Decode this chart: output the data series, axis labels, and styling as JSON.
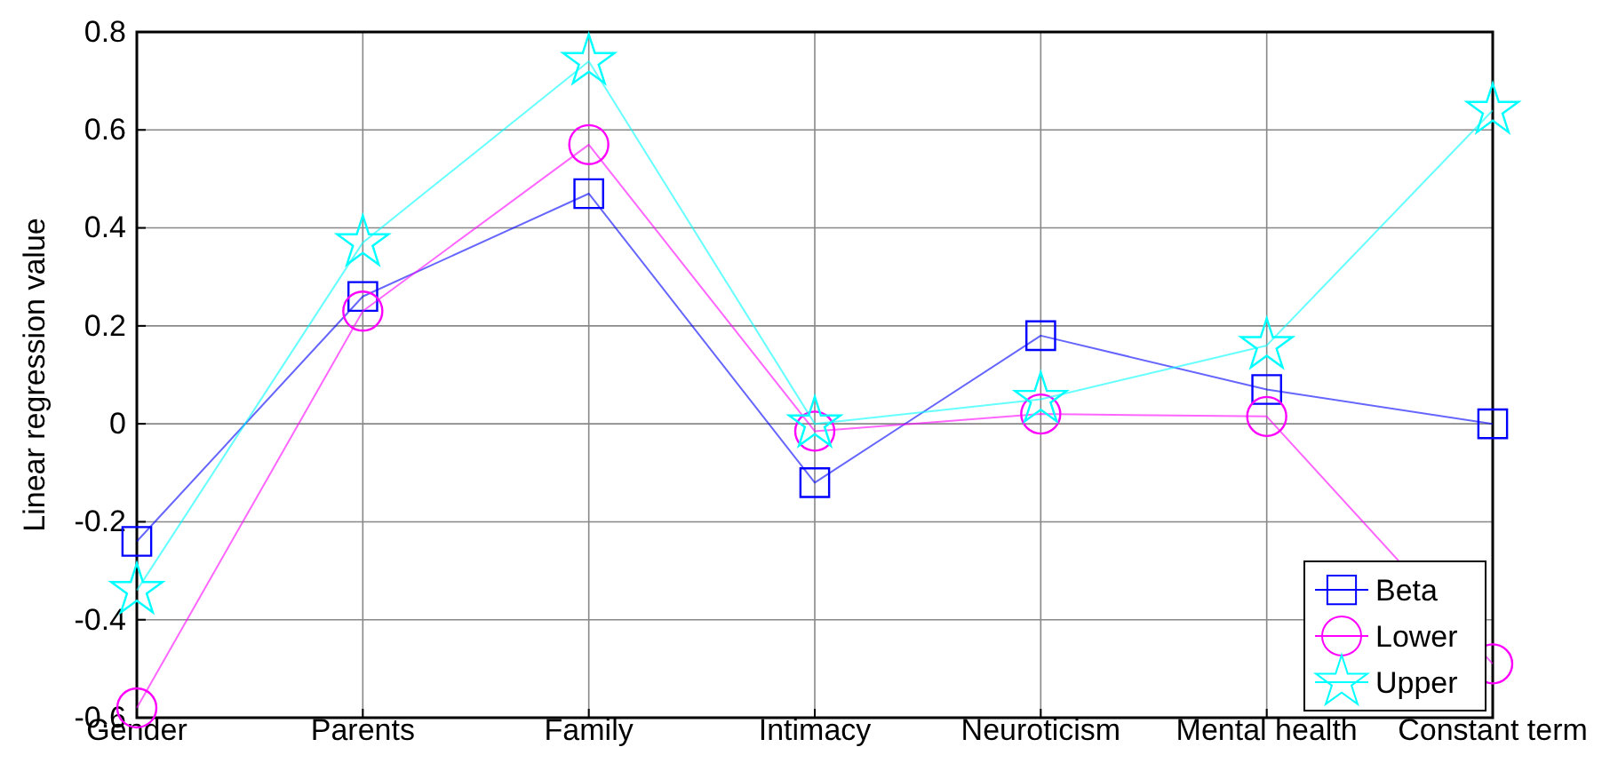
{
  "chart_data": {
    "type": "line",
    "ylabel": "Linear regression value",
    "categories": [
      "Gender",
      "Parents",
      "Family",
      "Intimacy",
      "Neuroticism",
      "Mental health",
      "Constant term"
    ],
    "series": [
      {
        "name": "Beta",
        "color": "#0000ff",
        "marker": "square",
        "values": [
          -0.24,
          0.26,
          0.47,
          -0.12,
          0.18,
          0.07,
          0.0
        ]
      },
      {
        "name": "Lower",
        "color": "#ff00ff",
        "marker": "circle",
        "values": [
          -0.58,
          0.23,
          0.57,
          -0.015,
          0.02,
          0.015,
          -0.49
        ]
      },
      {
        "name": "Upper",
        "color": "#00ffff",
        "marker": "star",
        "values": [
          -0.34,
          0.37,
          0.74,
          0.0,
          0.05,
          0.16,
          0.64
        ]
      }
    ],
    "ylim": [
      -0.6,
      0.8
    ],
    "yticks": [
      -0.6,
      -0.4,
      -0.2,
      0,
      0.2,
      0.4,
      0.6,
      0.8
    ],
    "grid": true,
    "legend": "bottom right",
    "line_style": "solid"
  }
}
